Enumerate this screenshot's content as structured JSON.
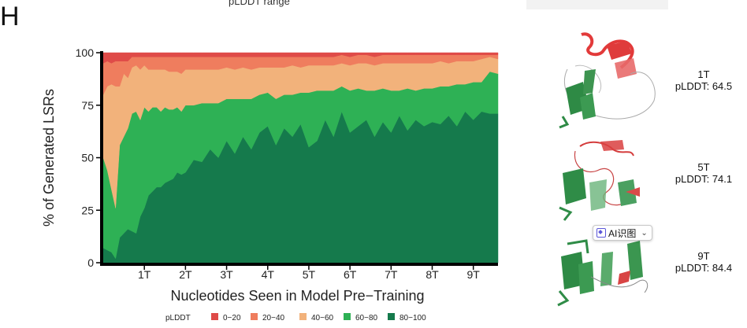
{
  "panel_label": "H",
  "top_clipped_text": "pLDDT range",
  "chart_data": {
    "type": "area",
    "stacked": true,
    "ylabel": "% of Generated LSRs",
    "xlabel": "Nucleotides Seen in Model Pre−Training",
    "ylim": [
      0,
      100
    ],
    "yticks": [
      0,
      25,
      50,
      75,
      100
    ],
    "xlim": [
      0,
      9.6
    ],
    "xticks": [
      1,
      2,
      3,
      4,
      5,
      6,
      7,
      8,
      9
    ],
    "xtick_labels": [
      "1T",
      "2T",
      "3T",
      "4T",
      "5T",
      "6T",
      "7T",
      "8T",
      "9T"
    ],
    "legend_title": "pLDDT",
    "legend_position": "bottom",
    "x": [
      0.0,
      0.1,
      0.2,
      0.3,
      0.4,
      0.5,
      0.6,
      0.7,
      0.8,
      0.9,
      1.0,
      1.1,
      1.2,
      1.3,
      1.4,
      1.5,
      1.6,
      1.7,
      1.8,
      1.9,
      2.0,
      2.2,
      2.4,
      2.6,
      2.8,
      3.0,
      3.2,
      3.4,
      3.6,
      3.8,
      4.0,
      4.2,
      4.4,
      4.6,
      4.8,
      5.0,
      5.2,
      5.4,
      5.6,
      5.8,
      6.0,
      6.2,
      6.4,
      6.6,
      6.8,
      7.0,
      7.2,
      7.4,
      7.6,
      7.8,
      8.0,
      8.2,
      8.4,
      8.6,
      8.8,
      9.0,
      9.2,
      9.4,
      9.6
    ],
    "series": [
      {
        "name": "80−100",
        "color": "#157a4c",
        "values": [
          7,
          6,
          5,
          2,
          12,
          14,
          16,
          15,
          14,
          22,
          26,
          32,
          34,
          36,
          36,
          38,
          39,
          40,
          43,
          42,
          43,
          49,
          48,
          54,
          50,
          58,
          52,
          60,
          54,
          62,
          65,
          56,
          64,
          60,
          66,
          55,
          58,
          68,
          60,
          72,
          62,
          65,
          68,
          60,
          67,
          62,
          70,
          63,
          68,
          65,
          67,
          66,
          70,
          65,
          72,
          68,
          72,
          71,
          71
        ]
      },
      {
        "name": "60−80",
        "color": "#2eb155",
        "values": [
          43,
          38,
          30,
          24,
          44,
          46,
          48,
          56,
          58,
          46,
          48,
          40,
          40,
          38,
          36,
          36,
          34,
          33,
          31,
          30,
          32,
          26,
          28,
          22,
          26,
          20,
          26,
          18,
          24,
          18,
          16,
          22,
          16,
          20,
          15,
          26,
          24,
          14,
          22,
          12,
          20,
          18,
          14,
          22,
          16,
          20,
          12,
          20,
          14,
          18,
          16,
          18,
          14,
          20,
          13,
          18,
          14,
          20,
          19
        ]
      },
      {
        "name": "40−60",
        "color": "#f2b27b",
        "values": [
          30,
          40,
          50,
          58,
          28,
          30,
          24,
          22,
          22,
          24,
          20,
          20,
          18,
          18,
          20,
          18,
          18,
          18,
          17,
          18,
          17,
          17,
          16,
          16,
          16,
          15,
          14,
          15,
          14,
          13,
          12,
          15,
          13,
          14,
          12,
          13,
          12,
          12,
          12,
          11,
          12,
          12,
          13,
          12,
          12,
          13,
          13,
          12,
          13,
          12,
          12,
          12,
          11,
          11,
          11,
          10,
          11,
          7,
          7
        ]
      },
      {
        "name": "20−40",
        "color": "#ef7d5e",
        "values": [
          15,
          12,
          10,
          12,
          12,
          6,
          8,
          5,
          4,
          6,
          4,
          6,
          6,
          6,
          6,
          6,
          7,
          7,
          7,
          8,
          6,
          6,
          6,
          6,
          6,
          5,
          6,
          5,
          6,
          5,
          5,
          5,
          5,
          4,
          5,
          4,
          4,
          4,
          4,
          4,
          4,
          4,
          4,
          4,
          4,
          4,
          4,
          4,
          4,
          4,
          4,
          3,
          4,
          3,
          3,
          3,
          2,
          1,
          2
        ]
      },
      {
        "name": "0−20",
        "color": "#df4b48",
        "values": [
          5,
          4,
          5,
          4,
          4,
          4,
          4,
          2,
          2,
          2,
          2,
          2,
          2,
          2,
          2,
          2,
          2,
          2,
          2,
          2,
          2,
          2,
          2,
          2,
          2,
          2,
          2,
          2,
          2,
          2,
          2,
          2,
          2,
          2,
          2,
          2,
          2,
          2,
          2,
          1,
          2,
          1,
          1,
          2,
          1,
          1,
          1,
          1,
          1,
          1,
          1,
          1,
          1,
          1,
          1,
          1,
          1,
          1,
          1
        ]
      }
    ]
  },
  "structures": [
    {
      "label_top": "1T",
      "label_bottom": "pLDDT: 64.5"
    },
    {
      "label_top": "5T",
      "label_bottom": "pLDDT: 74.1"
    },
    {
      "label_top": "9T",
      "label_bottom": "pLDDT: 84.4"
    }
  ],
  "ai_badge_label": "AI识图"
}
